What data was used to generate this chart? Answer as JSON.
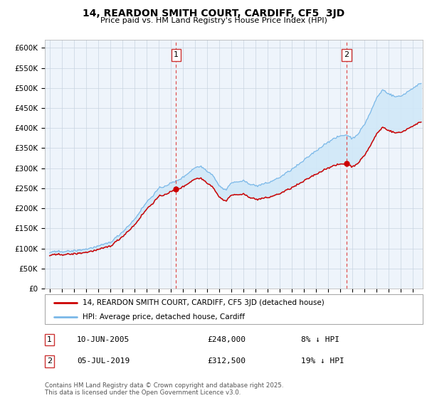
{
  "title": "14, REARDON SMITH COURT, CARDIFF, CF5  3JD",
  "subtitle": "Price paid vs. HM Land Registry's House Price Index (HPI)",
  "ylabel_ticks": [
    "£0",
    "£50K",
    "£100K",
    "£150K",
    "£200K",
    "£250K",
    "£300K",
    "£350K",
    "£400K",
    "£450K",
    "£500K",
    "£550K",
    "£600K"
  ],
  "ylim": [
    0,
    620000
  ],
  "ytick_vals": [
    0,
    50000,
    100000,
    150000,
    200000,
    250000,
    300000,
    350000,
    400000,
    450000,
    500000,
    550000,
    600000
  ],
  "sale1_date": 2005.44,
  "sale1_price": 248000,
  "sale2_date": 2019.51,
  "sale2_price": 312500,
  "hpi_color": "#7ab8e8",
  "hpi_fill_color": "#d0e8f8",
  "price_color": "#cc0000",
  "dashed_color": "#e06060",
  "background_color": "#eef4fb",
  "legend_house": "14, REARDON SMITH COURT, CARDIFF, CF5 3JD (detached house)",
  "legend_hpi": "HPI: Average price, detached house, Cardiff",
  "footer": "Contains HM Land Registry data © Crown copyright and database right 2025.\nThis data is licensed under the Open Government Licence v3.0.",
  "xlim_start": 1994.6,
  "xlim_end": 2025.8
}
